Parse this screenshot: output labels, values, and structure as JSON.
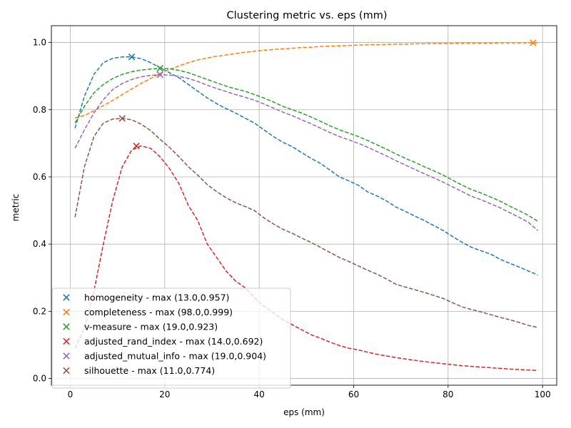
{
  "chart_data": {
    "type": "line",
    "title": "Clustering metric vs. eps (mm)",
    "xlabel": "eps (mm)",
    "ylabel": "metric",
    "xlim": [
      -4,
      103
    ],
    "ylim": [
      -0.02,
      1.05
    ],
    "xticks": [
      0,
      20,
      40,
      60,
      80,
      100
    ],
    "yticks": [
      0.0,
      0.2,
      0.4,
      0.6,
      0.8,
      1.0
    ],
    "xtick_labels": [
      "0",
      "20",
      "40",
      "60",
      "80",
      "100"
    ],
    "ytick_labels": [
      "0.0",
      "0.2",
      "0.4",
      "0.6",
      "0.8",
      "1.0"
    ],
    "grid": true,
    "legend_position": "lower-left",
    "x": [
      1,
      3,
      5,
      7,
      9,
      11,
      13,
      15,
      17,
      19,
      21,
      23,
      25,
      27,
      29,
      31,
      33,
      35,
      37,
      39,
      41,
      43,
      45,
      47,
      49,
      51,
      53,
      55,
      57,
      59,
      61,
      63,
      65,
      67,
      69,
      71,
      73,
      75,
      77,
      79,
      81,
      83,
      85,
      87,
      89,
      91,
      93,
      95,
      97,
      99
    ],
    "series": [
      {
        "name": "homogeneity",
        "legend_label": "homogeneity - max (13.0,0.957)",
        "color": "#1f77b4",
        "max_x": 13.0,
        "max_y": 0.957,
        "values": [
          0.745,
          0.84,
          0.905,
          0.94,
          0.953,
          0.957,
          0.957,
          0.952,
          0.94,
          0.925,
          0.91,
          0.895,
          0.875,
          0.855,
          0.835,
          0.818,
          0.803,
          0.79,
          0.775,
          0.76,
          0.74,
          0.72,
          0.703,
          0.69,
          0.672,
          0.655,
          0.64,
          0.62,
          0.6,
          0.588,
          0.575,
          0.555,
          0.543,
          0.528,
          0.51,
          0.497,
          0.483,
          0.47,
          0.455,
          0.44,
          0.422,
          0.405,
          0.39,
          0.38,
          0.37,
          0.355,
          0.343,
          0.332,
          0.32,
          0.308
        ]
      },
      {
        "name": "completeness",
        "legend_label": "completeness - max (98.0,0.999)",
        "color": "#ff7f0e",
        "max_x": 98.0,
        "max_y": 0.999,
        "values": [
          0.775,
          0.783,
          0.797,
          0.812,
          0.828,
          0.845,
          0.862,
          0.878,
          0.893,
          0.908,
          0.92,
          0.93,
          0.94,
          0.948,
          0.954,
          0.959,
          0.963,
          0.967,
          0.971,
          0.974,
          0.977,
          0.979,
          0.981,
          0.983,
          0.985,
          0.986,
          0.988,
          0.989,
          0.99,
          0.991,
          0.992,
          0.993,
          0.993,
          0.994,
          0.995,
          0.995,
          0.996,
          0.996,
          0.997,
          0.997,
          0.997,
          0.998,
          0.998,
          0.998,
          0.998,
          0.999,
          0.999,
          0.999,
          0.999,
          0.999
        ]
      },
      {
        "name": "v-measure",
        "legend_label": "v-measure - max (19.0,0.923)",
        "color": "#2ca02c",
        "max_x": 19.0,
        "max_y": 0.923,
        "values": [
          0.76,
          0.81,
          0.85,
          0.875,
          0.893,
          0.905,
          0.913,
          0.918,
          0.921,
          0.923,
          0.922,
          0.917,
          0.91,
          0.9,
          0.89,
          0.88,
          0.87,
          0.862,
          0.855,
          0.845,
          0.835,
          0.823,
          0.81,
          0.8,
          0.79,
          0.778,
          0.765,
          0.752,
          0.74,
          0.73,
          0.72,
          0.708,
          0.695,
          0.682,
          0.668,
          0.655,
          0.643,
          0.63,
          0.618,
          0.605,
          0.59,
          0.575,
          0.562,
          0.552,
          0.54,
          0.528,
          0.513,
          0.5,
          0.485,
          0.468
        ]
      },
      {
        "name": "adjusted_rand_index",
        "legend_label": "adjusted_rand_index - max (14.0,0.692)",
        "color": "#d62728",
        "max_x": 14.0,
        "max_y": 0.692,
        "values": [
          0.09,
          0.15,
          0.26,
          0.4,
          0.53,
          0.63,
          0.68,
          0.692,
          0.685,
          0.66,
          0.625,
          0.58,
          0.515,
          0.47,
          0.4,
          0.36,
          0.32,
          0.29,
          0.27,
          0.24,
          0.215,
          0.195,
          0.175,
          0.16,
          0.145,
          0.13,
          0.12,
          0.108,
          0.098,
          0.09,
          0.085,
          0.078,
          0.072,
          0.067,
          0.062,
          0.058,
          0.054,
          0.05,
          0.047,
          0.044,
          0.041,
          0.038,
          0.036,
          0.034,
          0.032,
          0.03,
          0.028,
          0.027,
          0.025,
          0.024
        ]
      },
      {
        "name": "adjusted_mutual_info",
        "legend_label": "adjusted_mutual_info - max (19.0,0.904)",
        "color": "#9467bd",
        "max_x": 19.0,
        "max_y": 0.904,
        "values": [
          0.685,
          0.74,
          0.79,
          0.83,
          0.86,
          0.878,
          0.89,
          0.898,
          0.902,
          0.904,
          0.903,
          0.899,
          0.893,
          0.884,
          0.873,
          0.863,
          0.854,
          0.845,
          0.837,
          0.828,
          0.817,
          0.805,
          0.793,
          0.782,
          0.77,
          0.758,
          0.745,
          0.732,
          0.72,
          0.71,
          0.7,
          0.688,
          0.675,
          0.662,
          0.648,
          0.635,
          0.622,
          0.609,
          0.597,
          0.584,
          0.57,
          0.556,
          0.542,
          0.532,
          0.52,
          0.508,
          0.494,
          0.48,
          0.465,
          0.44
        ]
      },
      {
        "name": "silhouette",
        "legend_label": "silhouette - max (11.0,0.774)",
        "color": "#8c564b",
        "max_x": 11.0,
        "max_y": 0.774,
        "values": [
          0.48,
          0.63,
          0.72,
          0.76,
          0.772,
          0.774,
          0.77,
          0.757,
          0.738,
          0.712,
          0.688,
          0.66,
          0.63,
          0.605,
          0.577,
          0.556,
          0.538,
          0.523,
          0.512,
          0.5,
          0.478,
          0.46,
          0.444,
          0.432,
          0.418,
          0.405,
          0.39,
          0.375,
          0.36,
          0.348,
          0.335,
          0.322,
          0.31,
          0.296,
          0.28,
          0.272,
          0.264,
          0.256,
          0.247,
          0.238,
          0.225,
          0.213,
          0.205,
          0.198,
          0.19,
          0.182,
          0.175,
          0.167,
          0.158,
          0.152
        ]
      }
    ]
  }
}
